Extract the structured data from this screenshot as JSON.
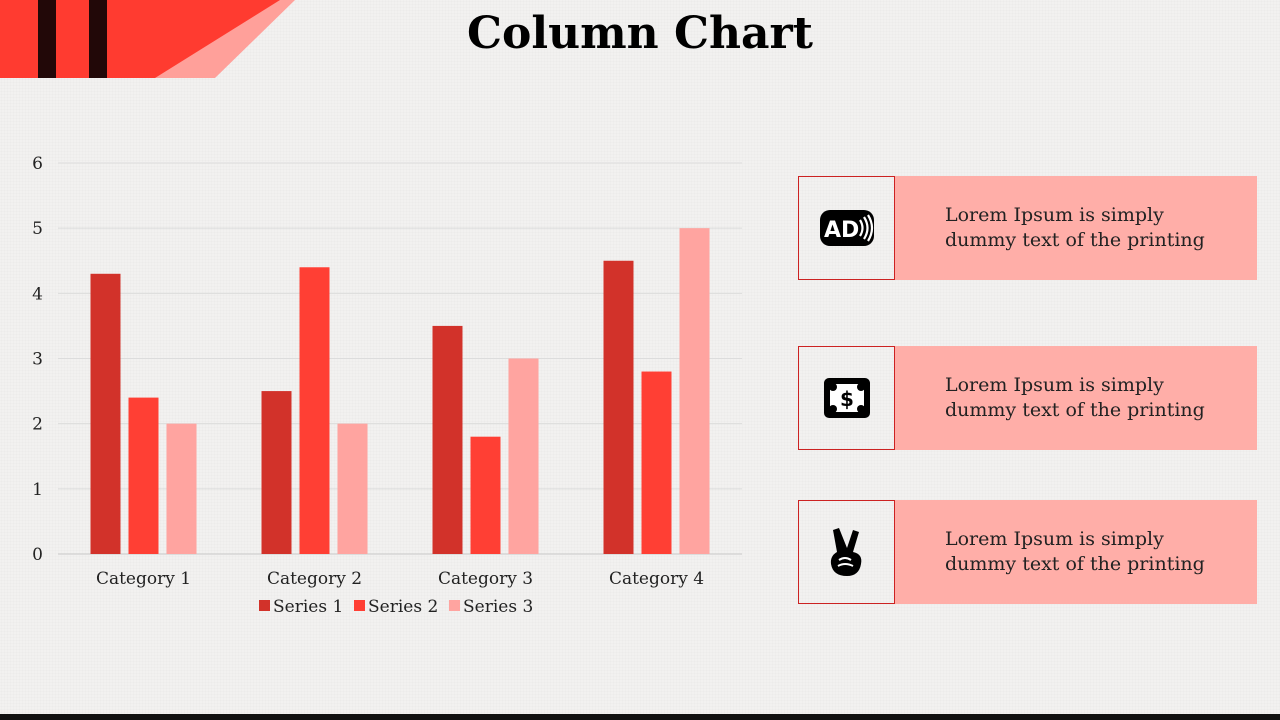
{
  "title": "Column Chart",
  "colors": {
    "series1": "#d2322a",
    "series2": "#ff3f34",
    "series3": "#ffa4a0",
    "accent_red": "#ff3b30",
    "card_bg": "#ffaea8"
  },
  "chart_data": {
    "type": "bar",
    "categories": [
      "Category 1",
      "Category 2",
      "Category 3",
      "Category 4"
    ],
    "series": [
      {
        "name": "Series 1",
        "values": [
          4.3,
          2.5,
          3.5,
          4.5
        ]
      },
      {
        "name": "Series 2",
        "values": [
          2.4,
          4.4,
          1.8,
          2.8
        ]
      },
      {
        "name": "Series 3",
        "values": [
          2.0,
          2.0,
          3.0,
          5.0
        ]
      }
    ],
    "y_ticks": [
      "0",
      "1",
      "2",
      "3",
      "4",
      "5",
      "6"
    ],
    "ylim": [
      0,
      6
    ],
    "grid": true,
    "legend_position": "bottom"
  },
  "cards": [
    {
      "icon": "audio-description-icon",
      "text": "Lorem Ipsum is simply dummy text of the printing"
    },
    {
      "icon": "money-icon",
      "text": "Lorem Ipsum is simply dummy text of the printing"
    },
    {
      "icon": "peace-hand-icon",
      "text": "Lorem Ipsum is simply dummy text of the printing"
    }
  ]
}
